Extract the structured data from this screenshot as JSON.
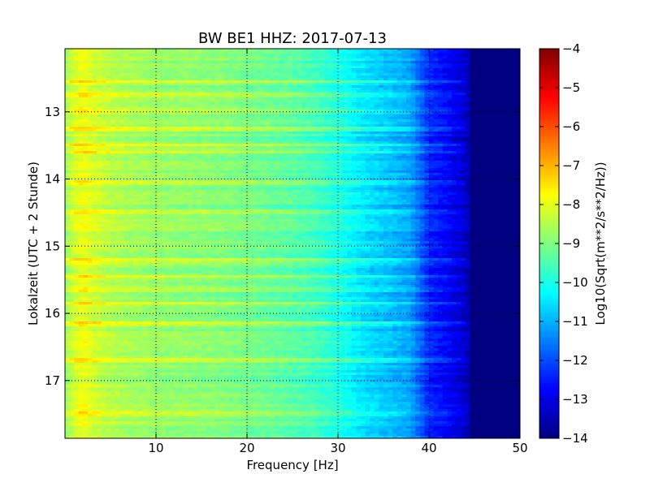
{
  "chart_data": {
    "type": "heatmap",
    "title": "BW BE1 HHZ: 2017-07-13",
    "xlabel": "Frequency [Hz]",
    "ylabel": "Lokalzeit (UTC + 2 Stunde)",
    "xlim": [
      0,
      50
    ],
    "ylim": [
      17.86,
      12.06
    ],
    "y_inverted": true,
    "grid": true,
    "x_ticks": [
      10,
      20,
      30,
      40,
      50
    ],
    "y_ticks": [
      13,
      14,
      15,
      16,
      17
    ],
    "colorbar": {
      "label": "Log10(Sqrt(m**2/s**2/Hz))",
      "range": [
        -14,
        -4
      ],
      "ticks": [
        -4,
        -5,
        -6,
        -7,
        -8,
        -9,
        -10,
        -11,
        -12,
        -13,
        -14
      ],
      "colormap": "jet",
      "colormap_stops": [
        "#00007f",
        "#0000ff",
        "#007fff",
        "#00ffff",
        "#7fff7f",
        "#ffff00",
        "#ff7f00",
        "#ff0000",
        "#7f0000"
      ]
    },
    "spectrum_profile": {
      "frequency": [
        0,
        1,
        2,
        3,
        5,
        8,
        10,
        15,
        20,
        25,
        28,
        30,
        32,
        34,
        36,
        38,
        39,
        40,
        42,
        44,
        45,
        46,
        50
      ],
      "level": [
        -8.8,
        -8.2,
        -7.9,
        -8.2,
        -8.5,
        -8.7,
        -8.8,
        -8.9,
        -9.1,
        -9.4,
        -9.7,
        -10.0,
        -10.4,
        -10.7,
        -10.9,
        -11.2,
        -11.8,
        -12.4,
        -12.8,
        -13.3,
        -13.8,
        -14.0,
        -14.0
      ]
    },
    "bright_bands_hours": [
      12.55,
      12.75,
      13.0,
      13.25,
      13.5,
      13.6,
      14.05,
      14.5,
      15.2,
      15.45,
      15.65,
      15.85,
      16.15,
      16.7,
      17.5
    ]
  }
}
